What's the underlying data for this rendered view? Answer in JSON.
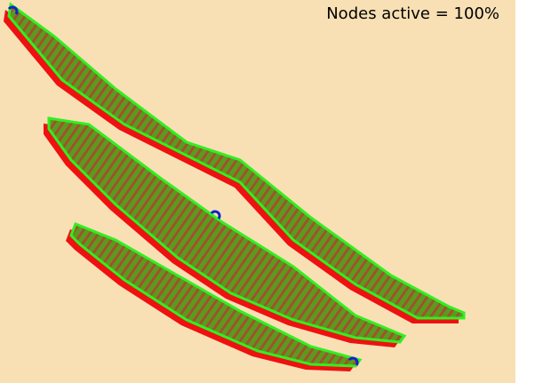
{
  "status": {
    "label": "Nodes active = 100%"
  }
}
